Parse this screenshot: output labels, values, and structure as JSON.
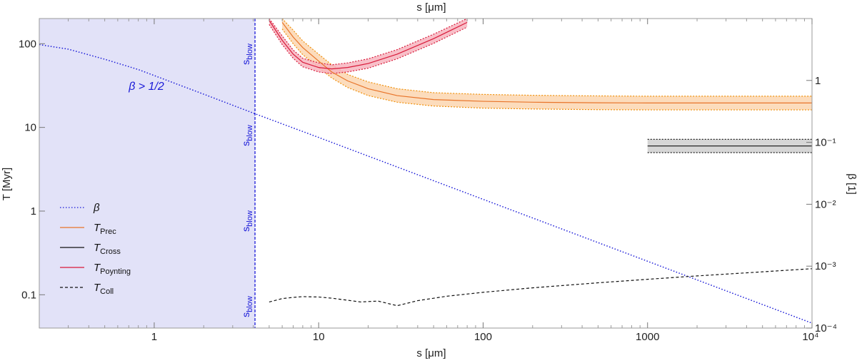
{
  "chart_data": {
    "type": "line",
    "xlabel_top": "s [μm]",
    "xlabel_bottom": "s [μm]",
    "ylabel_left": "T [Myr]",
    "ylabel_right": "β [1]",
    "xlim": [
      0.2,
      10000
    ],
    "ylim_left": [
      0.04,
      200
    ],
    "ylim_right": [
      0.0001,
      10
    ],
    "x_ticks": [
      {
        "value": 1,
        "label": "1"
      },
      {
        "value": 10,
        "label": "10"
      },
      {
        "value": 100,
        "label": "100"
      },
      {
        "value": 1000,
        "label": "1000"
      },
      {
        "value": 10000,
        "label": "10⁴"
      }
    ],
    "y_left_ticks": [
      {
        "value": 0.1,
        "label": "0.1"
      },
      {
        "value": 1,
        "label": "1"
      },
      {
        "value": 10,
        "label": "10"
      },
      {
        "value": 100,
        "label": "100"
      }
    ],
    "y_right_ticks": [
      {
        "value": 1,
        "label": "1"
      },
      {
        "value": 0.1,
        "label": "10⁻¹"
      },
      {
        "value": 0.01,
        "label": "10⁻²"
      },
      {
        "value": 0.001,
        "label": "10⁻³"
      },
      {
        "value": 0.0001,
        "label": "10⁻⁴"
      }
    ],
    "blowout_size": 4.1,
    "blowout_region_label": "β > 1/2",
    "blowout_line_labels": [
      "sblow",
      "sblow",
      "sblow",
      "sblow"
    ],
    "blowout_label_parts": {
      "main": "s",
      "sub": "blow"
    },
    "legend": [
      {
        "symbol": "β",
        "sub": "",
        "color": "#1a1ad8",
        "dash": "dotted"
      },
      {
        "symbol": "T",
        "sub": "Prec",
        "color": "#e8742a",
        "dash": "solid"
      },
      {
        "symbol": "T",
        "sub": "Cross",
        "color": "#111111",
        "dash": "solid"
      },
      {
        "symbol": "T",
        "sub": "Poynting",
        "color": "#d81a3a",
        "dash": "solid"
      },
      {
        "symbol": "T",
        "sub": "Coll",
        "color": "#111111",
        "dash": "dashed"
      }
    ],
    "series": [
      {
        "name": "β",
        "axis": "right",
        "color": "#1a1ad8",
        "dash": "dotted",
        "x": [
          0.2,
          0.3,
          0.5,
          0.8,
          1.2,
          2,
          4.1,
          10,
          100,
          1000,
          10000
        ],
        "y": [
          3.8,
          3.2,
          2.2,
          1.5,
          1.0,
          0.6,
          0.29,
          0.12,
          0.012,
          0.0012,
          0.00012
        ]
      },
      {
        "name": "T_Prec",
        "axis": "left",
        "color": "#e8742a",
        "dash": "solid",
        "x": [
          6,
          7,
          8,
          10,
          12,
          15,
          20,
          30,
          50,
          100,
          200,
          500,
          1000,
          3000,
          10000
        ],
        "y": [
          180,
          120,
          90,
          62,
          46,
          36,
          29,
          24,
          21.5,
          20.5,
          20,
          19.7,
          19.6,
          19.6,
          19.6
        ],
        "band_lower": [
          150,
          100,
          74,
          52,
          39,
          30,
          24,
          20,
          18,
          17,
          16.6,
          16.3,
          16.2,
          16.2,
          16.2
        ],
        "band_upper": [
          215,
          145,
          108,
          75,
          56,
          43,
          35,
          29,
          26,
          24.8,
          24.2,
          23.8,
          23.6,
          23.6,
          23.6
        ]
      },
      {
        "name": "T_Poynting",
        "axis": "left",
        "color": "#d81a3a",
        "dash": "solid",
        "x": [
          5,
          6,
          7,
          8,
          10,
          12,
          15,
          20,
          30,
          50,
          80
        ],
        "y": [
          190,
          110,
          75,
          60,
          52,
          50,
          52,
          58,
          75,
          115,
          180
        ],
        "band_lower": [
          170,
          98,
          67,
          53,
          46,
          44,
          46,
          51,
          66,
          101,
          158
        ],
        "band_upper": [
          212,
          124,
          84,
          67,
          59,
          56,
          59,
          66,
          85,
          130,
          205
        ]
      },
      {
        "name": "T_Cross",
        "axis": "left",
        "color": "#111111",
        "dash": "solid",
        "x": [
          1000,
          10000
        ],
        "y": [
          6.0,
          6.0
        ],
        "band_lower": [
          5.0,
          5.0
        ],
        "band_upper": [
          7.2,
          7.2
        ]
      },
      {
        "name": "T_Coll",
        "axis": "left",
        "color": "#111111",
        "dash": "dashed",
        "x": [
          5,
          6,
          7,
          8,
          10,
          12,
          15,
          18,
          20,
          23,
          30,
          40,
          60,
          100,
          200,
          500,
          1000,
          2000,
          5000,
          10000
        ],
        "y": [
          0.082,
          0.09,
          0.093,
          0.095,
          0.094,
          0.091,
          0.086,
          0.082,
          0.083,
          0.084,
          0.074,
          0.085,
          0.096,
          0.107,
          0.121,
          0.139,
          0.153,
          0.168,
          0.188,
          0.205
        ]
      }
    ]
  }
}
